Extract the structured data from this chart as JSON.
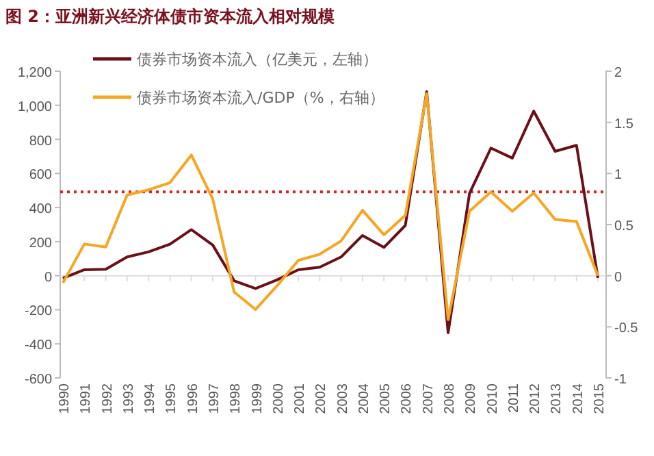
{
  "chart_data": {
    "type": "line",
    "title": "图 2：亚洲新兴经济体债市资本流入相对规模",
    "categories": [
      "1990",
      "1991",
      "1992",
      "1993",
      "1994",
      "1995",
      "1996",
      "1997",
      "1998",
      "1999",
      "2000",
      "2001",
      "2002",
      "2003",
      "2004",
      "2005",
      "2006",
      "2007",
      "2008",
      "2009",
      "2010",
      "2011",
      "2012",
      "2013",
      "2014",
      "2015"
    ],
    "series": [
      {
        "name": "债券市场资本流入（亿美元，左轴）",
        "color": "#6b0f1a",
        "values": [
          -15,
          35,
          38,
          110,
          140,
          185,
          270,
          180,
          -30,
          -75,
          -25,
          35,
          50,
          110,
          236,
          166,
          295,
          1080,
          -335,
          483,
          749,
          690,
          966,
          730,
          765,
          -13
        ]
      },
      {
        "name": "债券市场资本流入/GDP（%，右轴）",
        "color": "#f5a623",
        "axis": "y2",
        "values": [
          -0.07,
          0.31,
          0.28,
          0.79,
          0.84,
          0.91,
          1.18,
          0.75,
          -0.16,
          -0.33,
          -0.1,
          0.15,
          0.21,
          0.34,
          0.64,
          0.4,
          0.59,
          1.78,
          -0.43,
          0.63,
          0.82,
          0.63,
          0.81,
          0.55,
          0.53,
          0.0
        ]
      }
    ],
    "ylim": [
      -600,
      1200
    ],
    "yticks": [
      -600,
      -400,
      -200,
      0,
      200,
      400,
      600,
      800,
      {
        "value": 1000,
        "label": "1,000"
      },
      {
        "value": 1200,
        "label": "1,200"
      }
    ],
    "y2lim": [
      -1,
      2
    ],
    "y2ticks": [
      -1,
      -0.5,
      0,
      0.5,
      1,
      1.5,
      2
    ],
    "ref_lines": [
      {
        "axis": "y2",
        "value": 0.82,
        "color": "#e02020",
        "line_style": "dotted"
      }
    ],
    "legend": "top",
    "marker": "none",
    "line_style": "solid"
  }
}
